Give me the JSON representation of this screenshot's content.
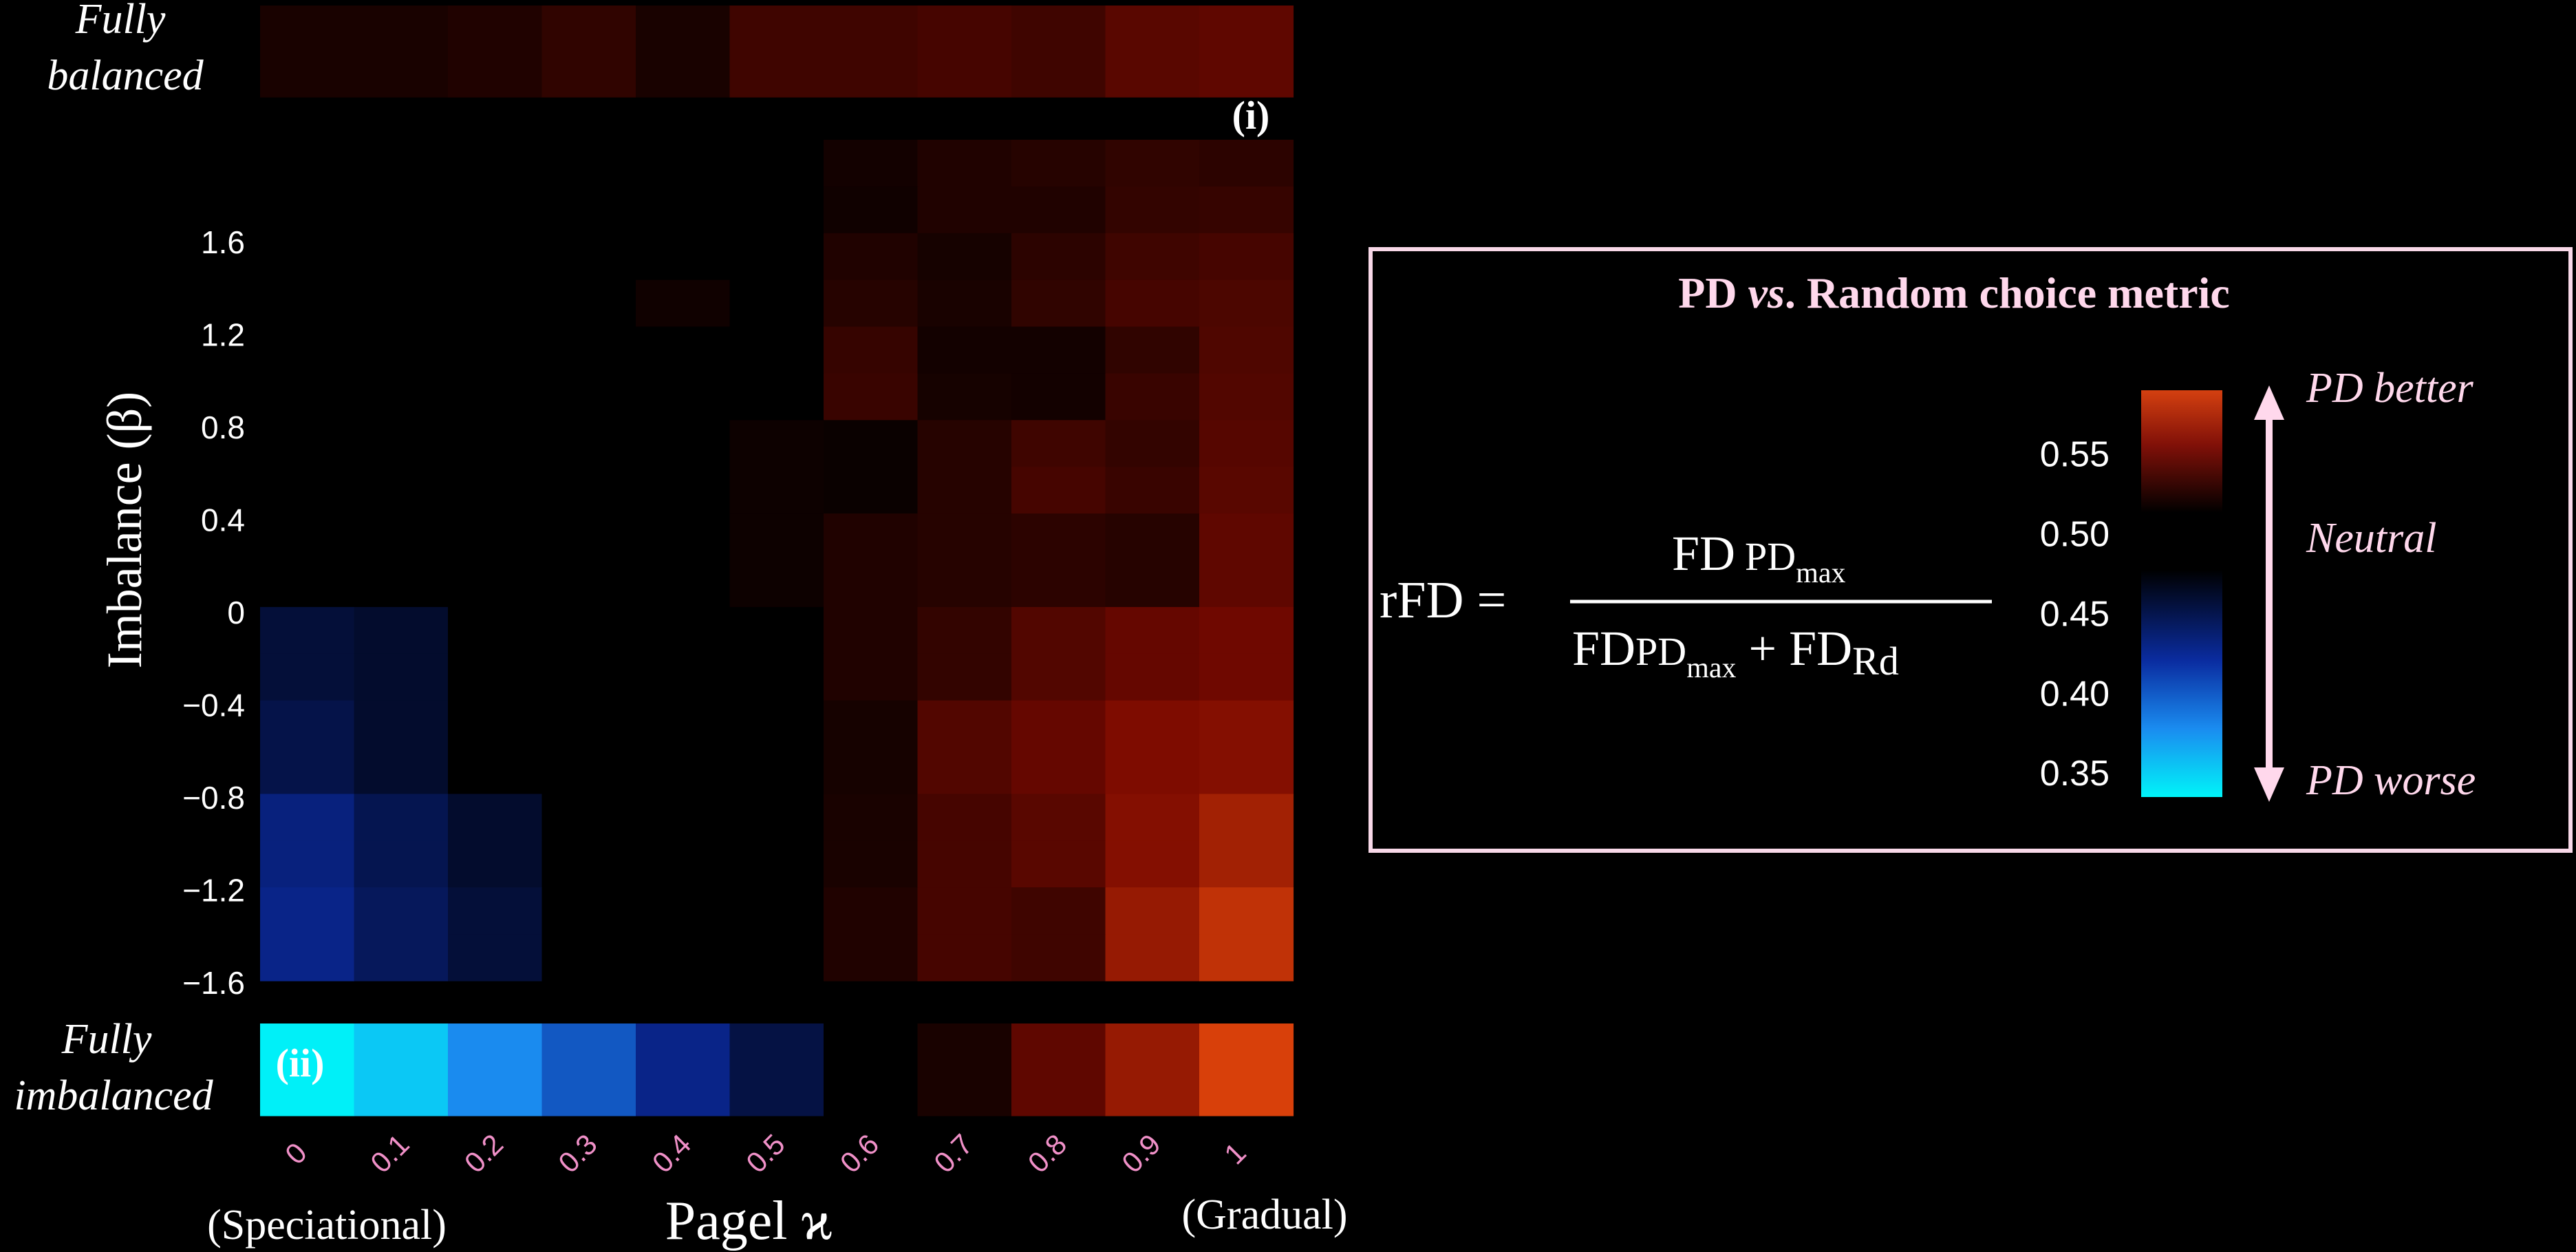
{
  "chart_data": {
    "type": "heatmap",
    "xlabel": "Pagel ϰ",
    "ylabel": "Imbalance (β)",
    "x_ticks": [
      "0",
      "0.1",
      "0.2",
      "0.3",
      "0.4",
      "0.5",
      "0.6",
      "0.7",
      "0.8",
      "0.9",
      "1"
    ],
    "x_end_labels": {
      "left": "(Speciational)",
      "right": "(Gradual)"
    },
    "y_ticks": [
      "1.6",
      "1.2",
      "0.8",
      "0.4",
      "0",
      "−0.4",
      "−0.8",
      "−1.2",
      "−1.6"
    ],
    "y_rows": [
      1.8,
      1.6,
      1.4,
      1.2,
      1.0,
      0.8,
      0.6,
      0.4,
      0.2,
      0.0,
      -0.2,
      -0.4,
      -0.6,
      -0.8,
      -1.0,
      -1.2,
      -1.4,
      -1.6
    ],
    "main_values": [
      [
        0.5,
        0.5,
        0.5,
        0.5,
        0.5,
        0.5,
        0.506,
        0.51,
        0.512,
        0.515,
        0.514
      ],
      [
        0.5,
        0.5,
        0.5,
        0.5,
        0.5,
        0.5,
        0.505,
        0.51,
        0.51,
        0.516,
        0.517
      ],
      [
        0.5,
        0.5,
        0.5,
        0.5,
        0.5,
        0.5,
        0.51,
        0.507,
        0.514,
        0.52,
        0.522
      ],
      [
        0.5,
        0.5,
        0.5,
        0.5,
        0.505,
        0.5,
        0.512,
        0.508,
        0.515,
        0.522,
        0.524
      ],
      [
        0.5,
        0.5,
        0.5,
        0.5,
        0.5,
        0.5,
        0.517,
        0.506,
        0.506,
        0.515,
        0.525
      ],
      [
        0.5,
        0.5,
        0.5,
        0.5,
        0.5,
        0.5,
        0.518,
        0.507,
        0.506,
        0.518,
        0.526
      ],
      [
        0.5,
        0.5,
        0.5,
        0.5,
        0.5,
        0.504,
        0.503,
        0.512,
        0.52,
        0.516,
        0.527
      ],
      [
        0.5,
        0.5,
        0.5,
        0.5,
        0.5,
        0.504,
        0.503,
        0.512,
        0.522,
        0.518,
        0.528
      ],
      [
        0.5,
        0.5,
        0.5,
        0.5,
        0.5,
        0.504,
        0.51,
        0.512,
        0.514,
        0.512,
        0.53
      ],
      [
        0.5,
        0.5,
        0.5,
        0.5,
        0.5,
        0.504,
        0.51,
        0.512,
        0.514,
        0.512,
        0.53
      ],
      [
        0.475,
        0.48,
        0.5,
        0.5,
        0.5,
        0.5,
        0.51,
        0.516,
        0.526,
        0.532,
        0.535
      ],
      [
        0.475,
        0.48,
        0.5,
        0.5,
        0.5,
        0.5,
        0.51,
        0.516,
        0.526,
        0.532,
        0.535
      ],
      [
        0.468,
        0.48,
        0.5,
        0.5,
        0.5,
        0.5,
        0.507,
        0.526,
        0.532,
        0.54,
        0.542
      ],
      [
        0.468,
        0.48,
        0.5,
        0.5,
        0.5,
        0.5,
        0.507,
        0.526,
        0.532,
        0.54,
        0.542
      ],
      [
        0.445,
        0.465,
        0.48,
        0.5,
        0.5,
        0.5,
        0.508,
        0.522,
        0.528,
        0.542,
        0.552
      ],
      [
        0.445,
        0.465,
        0.48,
        0.5,
        0.5,
        0.5,
        0.508,
        0.522,
        0.528,
        0.542,
        0.552
      ],
      [
        0.44,
        0.46,
        0.475,
        0.5,
        0.5,
        0.5,
        0.51,
        0.522,
        0.52,
        0.548,
        0.562
      ],
      [
        0.44,
        0.46,
        0.475,
        0.5,
        0.5,
        0.5,
        0.51,
        0.522,
        0.52,
        0.548,
        0.562
      ]
    ],
    "row_fully_balanced": {
      "labels": [
        "Fully",
        "balanced"
      ],
      "values": [
        0.508,
        0.508,
        0.51,
        0.515,
        0.508,
        0.52,
        0.52,
        0.522,
        0.52,
        0.528,
        0.53
      ],
      "marker": "(i)"
    },
    "row_fully_imbalanced": {
      "labels": [
        "Fully",
        "imbalanced"
      ],
      "values": [
        0.335,
        0.355,
        0.385,
        0.41,
        0.44,
        0.47,
        0.5,
        0.508,
        0.53,
        0.548,
        0.57
      ],
      "marker": "(ii)"
    },
    "colorbar": {
      "ticks": [
        "0.55",
        "0.50",
        "0.45",
        "0.40",
        "0.35"
      ],
      "tick_values": [
        0.55,
        0.5,
        0.45,
        0.4,
        0.35
      ],
      "range": [
        0.335,
        0.59
      ],
      "neutral_band": [
        0.482,
        0.518
      ]
    },
    "colors": {
      "neutral": "#000000",
      "red_mid": "#7a0900",
      "red_high": "#d83c08",
      "blue_mid": "#0a2a90",
      "blue_low": "#00f0f8",
      "axis_text": "#ffffff",
      "tick_pink": "#f090c8",
      "legend_pink": "#ffd8ec",
      "legend_border": "#f8d8e8"
    }
  },
  "legend": {
    "title_a": "PD ",
    "title_b": "vs",
    "title_c": ". Random choice metric",
    "formula_lhs": "rFD =",
    "num_fd": "FD",
    "num_sub": "PD",
    "num_subsub": "max",
    "den_fd": "FD",
    "den_sub": "PD",
    "den_subsub": "max",
    "den_plus": "+ FD",
    "den_rd": "Rd",
    "label_top": "PD better",
    "label_mid": "Neutral",
    "label_bottom": "PD worse"
  }
}
